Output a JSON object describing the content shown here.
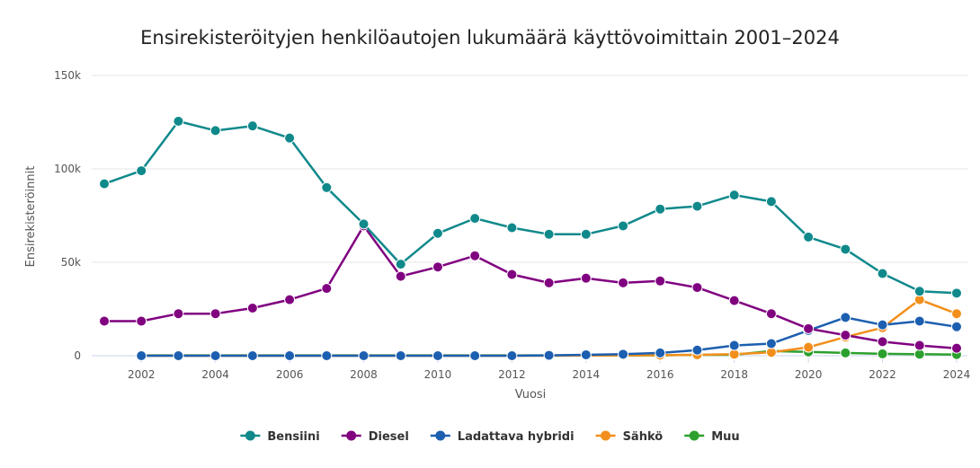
{
  "chart_data": {
    "type": "line",
    "title": "Ensirekisteröityjen henkilöautojen lukumäärä käyttövoimittain 2001–2024",
    "xlabel": "Vuosi",
    "ylabel": "Ensirekisteröinnit",
    "x": [
      2001,
      2002,
      2003,
      2004,
      2005,
      2006,
      2007,
      2008,
      2009,
      2010,
      2011,
      2012,
      2013,
      2014,
      2015,
      2016,
      2017,
      2018,
      2019,
      2020,
      2021,
      2022,
      2023,
      2024
    ],
    "xlim": [
      2001,
      2024
    ],
    "ylim": [
      0,
      150000
    ],
    "x_ticks": [
      2002,
      2004,
      2006,
      2008,
      2010,
      2012,
      2014,
      2016,
      2018,
      2020,
      2022,
      2024
    ],
    "y_ticks": [
      0,
      50000,
      100000,
      150000
    ],
    "y_tick_labels": [
      "0",
      "50k",
      "100k",
      "150k"
    ],
    "grid": true,
    "legend_position": "bottom-center",
    "series": [
      {
        "name": "Bensiini",
        "color": "#10898b",
        "values": [
          92000,
          99000,
          125500,
          120500,
          123000,
          116500,
          90000,
          70500,
          49000,
          65500,
          73500,
          68500,
          65000,
          65000,
          69500,
          78500,
          80000,
          86000,
          82500,
          63500,
          57000,
          44000,
          34500,
          33500
        ]
      },
      {
        "name": "Diesel",
        "color": "#800080",
        "values": [
          18500,
          18500,
          22500,
          22500,
          25500,
          30000,
          36000,
          69500,
          42500,
          47500,
          53500,
          43500,
          39000,
          41500,
          39000,
          40000,
          36500,
          29500,
          22500,
          14500,
          11000,
          7500,
          5500,
          4000
        ]
      },
      {
        "name": "Ladattava hybridi",
        "color": "#1c5fb0",
        "values": [
          null,
          0,
          0,
          0,
          0,
          0,
          0,
          0,
          0,
          0,
          0,
          0,
          200,
          500,
          800,
          1500,
          3000,
          5500,
          6500,
          13500,
          20500,
          16500,
          18500,
          15500
        ]
      },
      {
        "name": "Sähkö",
        "color": "#f28f1c",
        "values": [
          null,
          0,
          0,
          0,
          0,
          0,
          0,
          0,
          0,
          0,
          0,
          0,
          0,
          100,
          200,
          300,
          500,
          800,
          1800,
          4500,
          10000,
          15000,
          30000,
          22500
        ]
      },
      {
        "name": "Muu",
        "color": "#2ca02c",
        "values": [
          null,
          200,
          200,
          200,
          200,
          200,
          200,
          200,
          200,
          200,
          200,
          200,
          200,
          200,
          200,
          200,
          500,
          500,
          2500,
          2000,
          1500,
          1000,
          800,
          600
        ]
      }
    ]
  }
}
